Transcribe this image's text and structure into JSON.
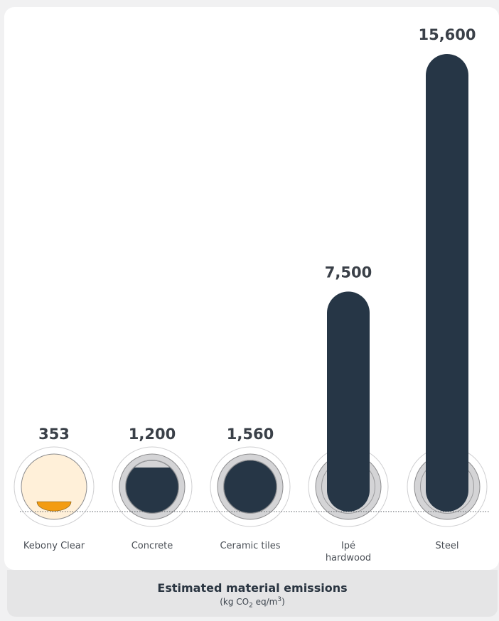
{
  "colors": {
    "bar": "#263646",
    "kebony_fill": "#fff0d9",
    "kebony_accent": "#f39c12",
    "disc": "#d4d4d6",
    "ring": "#b8b8ba"
  },
  "chart_data": {
    "type": "bar",
    "title": "Estimated material emissions",
    "unit": {
      "prefix": "(kg CO",
      "sub": "2",
      "mid": " eq/m",
      "sup": "3",
      "suffix": ")"
    },
    "categories": [
      {
        "label_lines": [
          "Kebony Clear"
        ]
      },
      {
        "label_lines": [
          "Concrete"
        ]
      },
      {
        "label_lines": [
          "Ceramic tiles"
        ]
      },
      {
        "label_lines": [
          "Ipé",
          "hardwood"
        ]
      },
      {
        "label_lines": [
          "Steel"
        ]
      }
    ],
    "values": [
      353,
      1200,
      1560,
      7500,
      15600
    ],
    "value_labels": [
      "353",
      "1,200",
      "1,560",
      "7,500",
      "15,600"
    ],
    "grid": false
  }
}
